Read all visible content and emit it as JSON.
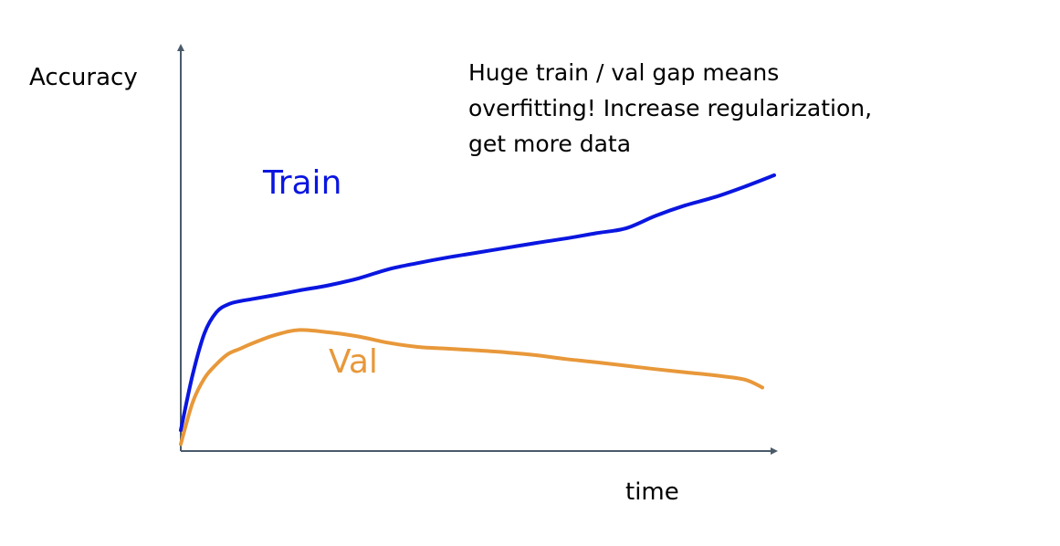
{
  "chart_data": {
    "type": "line",
    "title": "",
    "xlabel": "time",
    "ylabel": "Accuracy",
    "grid": false,
    "legend": "inline",
    "xlim": [
      0,
      100
    ],
    "ylim": [
      0,
      100
    ],
    "annotation": [
      "Huge train / val gap means",
      "overfitting! Increase regularization,",
      "get more data"
    ],
    "series": [
      {
        "name": "Train",
        "color": "#0a16e0",
        "x": [
          0,
          2,
          4,
          6,
          8,
          10,
          12,
          16,
          20,
          25,
          30,
          35,
          40,
          45,
          50,
          55,
          60,
          65,
          70,
          75,
          80,
          85,
          90,
          95,
          100
        ],
        "y": [
          6,
          22,
          34,
          40,
          42.3,
          43.2,
          43.8,
          45,
          46.3,
          47.8,
          49.8,
          52.4,
          54.2,
          55.8,
          57.2,
          58.6,
          60,
          61.3,
          62.8,
          64.2,
          67.8,
          70.8,
          73.2,
          76.2,
          79.5
        ]
      },
      {
        "name": "Val",
        "color": "#e8983a",
        "x": [
          0,
          2,
          4,
          6,
          8,
          10,
          12,
          16,
          20,
          25,
          30,
          35,
          40,
          45,
          50,
          55,
          60,
          65,
          70,
          75,
          80,
          85,
          90,
          95,
          98
        ],
        "y": [
          2,
          14,
          21,
          25,
          28,
          29.5,
          31,
          33.5,
          34.9,
          34.2,
          33,
          31.2,
          30,
          29.5,
          29,
          28.4,
          27.6,
          26.5,
          25.6,
          24.6,
          23.6,
          22.7,
          21.8,
          20.6,
          18.3
        ]
      }
    ]
  }
}
